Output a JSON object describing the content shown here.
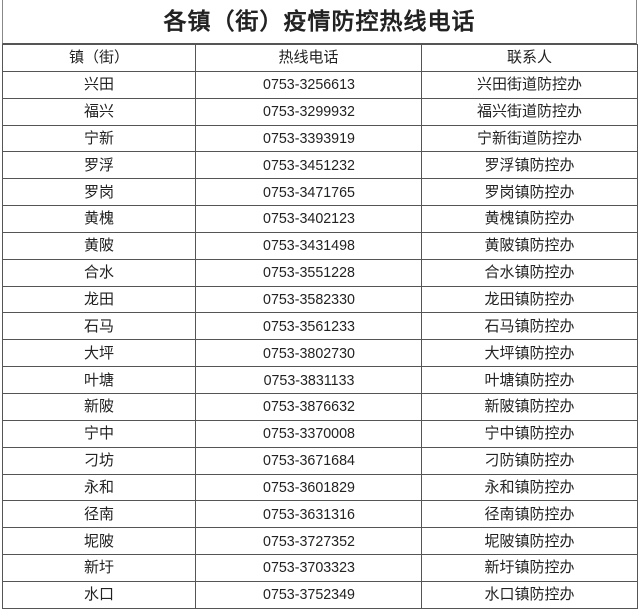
{
  "title": "各镇（街）疫情防控热线电话",
  "headers": [
    "镇（街）",
    "热线电话",
    "联系人"
  ],
  "rows": [
    [
      "兴田",
      "0753-3256613",
      "兴田街道防控办"
    ],
    [
      "福兴",
      "0753-3299932",
      "福兴街道防控办"
    ],
    [
      "宁新",
      "0753-3393919",
      "宁新街道防控办"
    ],
    [
      "罗浮",
      "0753-3451232",
      "罗浮镇防控办"
    ],
    [
      "罗岗",
      "0753-3471765",
      "罗岗镇防控办"
    ],
    [
      "黄槐",
      "0753-3402123",
      "黄槐镇防控办"
    ],
    [
      "黄陂",
      "0753-3431498",
      "黄陂镇防控办"
    ],
    [
      "合水",
      "0753-3551228",
      "合水镇防控办"
    ],
    [
      "龙田",
      "0753-3582330",
      "龙田镇防控办"
    ],
    [
      "石马",
      "0753-3561233",
      "石马镇防控办"
    ],
    [
      "大坪",
      "0753-3802730",
      "大坪镇防控办"
    ],
    [
      "叶塘",
      "0753-3831133",
      "叶塘镇防控办"
    ],
    [
      "新陂",
      "0753-3876632",
      "新陂镇防控办"
    ],
    [
      "宁中",
      "0753-3370008",
      "宁中镇防控办"
    ],
    [
      "刁坊",
      "0753-3671684",
      "刁防镇防控办"
    ],
    [
      "永和",
      "0753-3601829",
      "永和镇防控办"
    ],
    [
      "径南",
      "0753-3631316",
      "径南镇防控办"
    ],
    [
      "坭陂",
      "0753-3727352",
      "坭陂镇防控办"
    ],
    [
      "新圩",
      "0753-3703323",
      "新圩镇防控办"
    ],
    [
      "水口",
      "0753-3752349",
      "水口镇防控办"
    ]
  ]
}
